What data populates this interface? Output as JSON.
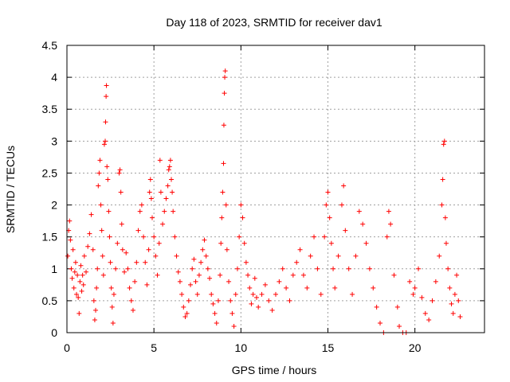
{
  "chart_data": {
    "type": "scatter",
    "title": "Day 118 of 2023, SRMTID for receiver dav1",
    "xlabel": "GPS time / hours",
    "ylabel": "SRMTID / TECUs",
    "xlim": [
      0,
      24
    ],
    "ylim": [
      0,
      4.5
    ],
    "xticks": [
      0,
      5,
      10,
      15,
      20
    ],
    "xtick_labels": [
      "0",
      "5",
      "10",
      "15",
      "20"
    ],
    "yticks": [
      0,
      0.5,
      1,
      1.5,
      2,
      2.5,
      3,
      3.5,
      4,
      4.5
    ],
    "ytick_labels": [
      "0",
      "0.5",
      "1",
      "1.5",
      "2",
      "2.5",
      "3",
      "3.5",
      "4",
      "4.5"
    ],
    "grid": true,
    "marker": "+",
    "series": [
      {
        "name": "SRMTID",
        "color": "#ff0000",
        "points": [
          [
            0.05,
            1.2
          ],
          [
            0.1,
            1.6
          ],
          [
            0.15,
            1.75
          ],
          [
            0.2,
            1.45
          ],
          [
            0.25,
            1.0
          ],
          [
            0.3,
            0.85
          ],
          [
            0.35,
            1.3
          ],
          [
            0.4,
            0.7
          ],
          [
            0.45,
            0.95
          ],
          [
            0.5,
            1.1
          ],
          [
            0.55,
            0.6
          ],
          [
            0.6,
            0.9
          ],
          [
            0.65,
            0.55
          ],
          [
            0.7,
            0.3
          ],
          [
            0.75,
            0.8
          ],
          [
            0.8,
            1.05
          ],
          [
            0.85,
            0.65
          ],
          [
            0.9,
            0.9
          ],
          [
            0.95,
            0.75
          ],
          [
            1.0,
            1.2
          ],
          [
            1.1,
            0.95
          ],
          [
            1.2,
            1.35
          ],
          [
            1.3,
            1.55
          ],
          [
            1.4,
            1.85
          ],
          [
            1.5,
            1.3
          ],
          [
            1.55,
            0.5
          ],
          [
            1.6,
            0.2
          ],
          [
            1.65,
            0.35
          ],
          [
            1.7,
            0.7
          ],
          [
            1.75,
            1.0
          ],
          [
            1.8,
            2.3
          ],
          [
            1.85,
            2.5
          ],
          [
            1.9,
            2.7
          ],
          [
            1.95,
            2.0
          ],
          [
            2.0,
            1.6
          ],
          [
            2.05,
            1.2
          ],
          [
            2.1,
            0.9
          ],
          [
            2.15,
            2.95
          ],
          [
            2.2,
            3.0
          ],
          [
            2.22,
            3.3
          ],
          [
            2.25,
            3.7
          ],
          [
            2.27,
            3.87
          ],
          [
            2.3,
            2.6
          ],
          [
            2.35,
            2.4
          ],
          [
            2.4,
            1.9
          ],
          [
            2.45,
            1.5
          ],
          [
            2.5,
            1.1
          ],
          [
            2.55,
            0.7
          ],
          [
            2.6,
            0.4
          ],
          [
            2.65,
            0.15
          ],
          [
            2.7,
            0.6
          ],
          [
            2.8,
            1.0
          ],
          [
            2.9,
            1.4
          ],
          [
            3.0,
            2.5
          ],
          [
            3.05,
            2.55
          ],
          [
            3.1,
            2.2
          ],
          [
            3.15,
            1.7
          ],
          [
            3.2,
            1.3
          ],
          [
            3.3,
            0.95
          ],
          [
            3.4,
            1.25
          ],
          [
            3.5,
            1.0
          ],
          [
            3.6,
            0.7
          ],
          [
            3.7,
            0.5
          ],
          [
            3.8,
            0.35
          ],
          [
            3.9,
            0.8
          ],
          [
            4.0,
            1.1
          ],
          [
            4.1,
            1.6
          ],
          [
            4.2,
            1.9
          ],
          [
            4.3,
            2.0
          ],
          [
            4.4,
            1.5
          ],
          [
            4.5,
            1.1
          ],
          [
            4.6,
            0.75
          ],
          [
            4.7,
            1.3
          ],
          [
            4.75,
            2.2
          ],
          [
            4.8,
            2.4
          ],
          [
            4.85,
            2.1
          ],
          [
            4.9,
            1.8
          ],
          [
            5.0,
            1.5
          ],
          [
            5.1,
            1.2
          ],
          [
            5.2,
            0.9
          ],
          [
            5.3,
            1.4
          ],
          [
            5.35,
            2.7
          ],
          [
            5.4,
            2.2
          ],
          [
            5.5,
            1.7
          ],
          [
            5.6,
            1.9
          ],
          [
            5.7,
            2.1
          ],
          [
            5.8,
            2.3
          ],
          [
            5.85,
            2.55
          ],
          [
            5.9,
            2.6
          ],
          [
            5.95,
            2.7
          ],
          [
            6.0,
            2.4
          ],
          [
            6.05,
            2.2
          ],
          [
            6.1,
            1.9
          ],
          [
            6.2,
            1.5
          ],
          [
            6.3,
            1.2
          ],
          [
            6.4,
            0.95
          ],
          [
            6.5,
            0.8
          ],
          [
            6.6,
            0.6
          ],
          [
            6.7,
            0.4
          ],
          [
            6.8,
            0.25
          ],
          [
            6.9,
            0.3
          ],
          [
            7.0,
            0.5
          ],
          [
            7.1,
            0.75
          ],
          [
            7.2,
            1.0
          ],
          [
            7.3,
            1.15
          ],
          [
            7.4,
            0.8
          ],
          [
            7.5,
            0.6
          ],
          [
            7.6,
            0.9
          ],
          [
            7.7,
            1.1
          ],
          [
            7.8,
            1.3
          ],
          [
            7.9,
            1.45
          ],
          [
            8.0,
            1.2
          ],
          [
            8.1,
            1.0
          ],
          [
            8.2,
            0.85
          ],
          [
            8.3,
            0.6
          ],
          [
            8.4,
            0.45
          ],
          [
            8.5,
            0.3
          ],
          [
            8.6,
            0.15
          ],
          [
            8.7,
            0.5
          ],
          [
            8.8,
            0.9
          ],
          [
            8.85,
            1.4
          ],
          [
            8.9,
            1.8
          ],
          [
            8.95,
            2.2
          ],
          [
            9.0,
            2.65
          ],
          [
            9.02,
            3.25
          ],
          [
            9.05,
            3.75
          ],
          [
            9.07,
            4.0
          ],
          [
            9.1,
            4.1
          ],
          [
            9.15,
            2.0
          ],
          [
            9.2,
            1.3
          ],
          [
            9.3,
            0.8
          ],
          [
            9.4,
            0.5
          ],
          [
            9.5,
            0.3
          ],
          [
            9.6,
            0.1
          ],
          [
            9.7,
            0.6
          ],
          [
            9.8,
            1.0
          ],
          [
            9.9,
            1.5
          ],
          [
            10.0,
            2.0
          ],
          [
            10.1,
            1.8
          ],
          [
            10.2,
            1.4
          ],
          [
            10.3,
            1.1
          ],
          [
            10.4,
            0.9
          ],
          [
            10.5,
            0.7
          ],
          [
            10.6,
            0.45
          ],
          [
            10.7,
            0.6
          ],
          [
            10.8,
            0.85
          ],
          [
            10.9,
            0.55
          ],
          [
            11.0,
            0.4
          ],
          [
            11.2,
            0.6
          ],
          [
            11.4,
            0.75
          ],
          [
            11.6,
            0.5
          ],
          [
            11.8,
            0.35
          ],
          [
            12.0,
            0.6
          ],
          [
            12.2,
            0.8
          ],
          [
            12.4,
            1.0
          ],
          [
            12.6,
            0.7
          ],
          [
            12.8,
            0.5
          ],
          [
            13.0,
            0.9
          ],
          [
            13.2,
            1.1
          ],
          [
            13.4,
            1.3
          ],
          [
            13.6,
            0.9
          ],
          [
            13.8,
            0.7
          ],
          [
            14.0,
            1.2
          ],
          [
            14.2,
            1.5
          ],
          [
            14.4,
            1.0
          ],
          [
            14.6,
            0.6
          ],
          [
            14.8,
            1.5
          ],
          [
            14.9,
            2.0
          ],
          [
            15.0,
            2.2
          ],
          [
            15.1,
            1.8
          ],
          [
            15.2,
            1.4
          ],
          [
            15.3,
            1.0
          ],
          [
            15.4,
            0.7
          ],
          [
            15.6,
            1.2
          ],
          [
            15.8,
            2.0
          ],
          [
            15.9,
            2.3
          ],
          [
            16.0,
            1.6
          ],
          [
            16.2,
            1.0
          ],
          [
            16.4,
            0.6
          ],
          [
            16.6,
            1.2
          ],
          [
            16.8,
            1.9
          ],
          [
            17.0,
            1.7
          ],
          [
            17.2,
            1.4
          ],
          [
            17.4,
            1.0
          ],
          [
            17.6,
            0.7
          ],
          [
            17.8,
            0.4
          ],
          [
            18.0,
            0.15
          ],
          [
            18.2,
            0.0
          ],
          [
            18.4,
            1.5
          ],
          [
            18.5,
            1.9
          ],
          [
            18.6,
            1.7
          ],
          [
            18.8,
            0.9
          ],
          [
            19.0,
            0.4
          ],
          [
            19.1,
            0.1
          ],
          [
            19.3,
            0.0
          ],
          [
            19.5,
            0.0
          ],
          [
            19.7,
            0.8
          ],
          [
            19.9,
            0.6
          ],
          [
            20.0,
            0.7
          ],
          [
            20.2,
            1.0
          ],
          [
            20.4,
            0.55
          ],
          [
            20.6,
            0.3
          ],
          [
            20.8,
            0.2
          ],
          [
            21.0,
            0.5
          ],
          [
            21.2,
            0.8
          ],
          [
            21.4,
            1.2
          ],
          [
            21.55,
            2.0
          ],
          [
            21.6,
            2.4
          ],
          [
            21.65,
            2.95
          ],
          [
            21.7,
            3.0
          ],
          [
            21.75,
            1.8
          ],
          [
            21.8,
            1.4
          ],
          [
            21.9,
            1.0
          ],
          [
            22.0,
            0.7
          ],
          [
            22.1,
            0.45
          ],
          [
            22.2,
            0.3
          ],
          [
            22.3,
            0.6
          ],
          [
            22.4,
            0.9
          ],
          [
            22.5,
            0.5
          ],
          [
            22.6,
            0.25
          ]
        ]
      }
    ]
  }
}
